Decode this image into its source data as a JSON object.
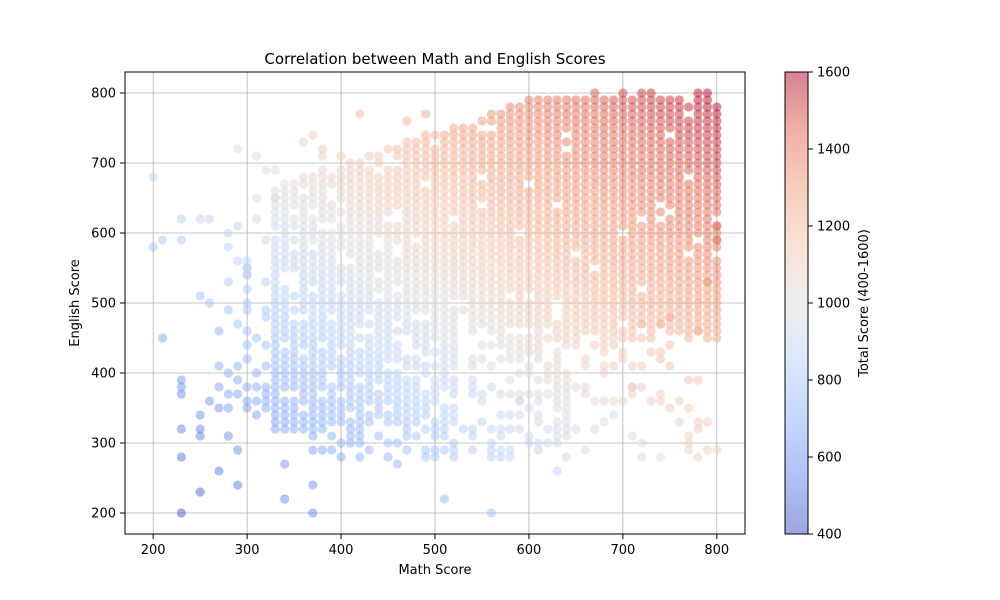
{
  "chart_data": {
    "type": "scatter",
    "title": "Correlation between Math and English Scores",
    "xlabel": "Math Score",
    "ylabel": "English Score",
    "xlim": [
      170,
      830
    ],
    "ylim": [
      170,
      830
    ],
    "xticks": [
      200,
      300,
      400,
      500,
      600,
      700,
      800
    ],
    "yticks": [
      200,
      300,
      400,
      500,
      600,
      700,
      800
    ],
    "grid": true,
    "colormap": "coolwarm",
    "point_alpha": 0.5,
    "colorbar": {
      "label": "Total Score (400-1600)",
      "range": [
        400,
        1600
      ],
      "ticks": [
        400,
        600,
        800,
        1000,
        1200,
        1400,
        1600
      ]
    },
    "density_note": "Dense grid of points with 10-point steps; core region roughly math 300-800, english 300-790, strongest concentration where math+english is high.",
    "points": [
      {
        "math": 200,
        "english": 680
      },
      {
        "math": 200,
        "english": 580
      },
      {
        "math": 210,
        "english": 590
      },
      {
        "math": 210,
        "english": 450
      },
      {
        "math": 230,
        "english": 620
      },
      {
        "math": 230,
        "english": 590
      },
      {
        "math": 230,
        "english": 390
      },
      {
        "math": 230,
        "english": 380
      },
      {
        "math": 230,
        "english": 370
      },
      {
        "math": 230,
        "english": 320
      },
      {
        "math": 230,
        "english": 280
      },
      {
        "math": 230,
        "english": 200
      },
      {
        "math": 250,
        "english": 620
      },
      {
        "math": 250,
        "english": 510
      },
      {
        "math": 250,
        "english": 340
      },
      {
        "math": 250,
        "english": 320
      },
      {
        "math": 250,
        "english": 310
      },
      {
        "math": 250,
        "english": 230
      },
      {
        "math": 260,
        "english": 620
      },
      {
        "math": 260,
        "english": 500
      },
      {
        "math": 260,
        "english": 360
      },
      {
        "math": 270,
        "english": 460
      },
      {
        "math": 270,
        "english": 410
      },
      {
        "math": 270,
        "english": 380
      },
      {
        "math": 270,
        "english": 350
      },
      {
        "math": 270,
        "english": 260
      },
      {
        "math": 280,
        "english": 600
      },
      {
        "math": 280,
        "english": 580
      },
      {
        "math": 280,
        "english": 530
      },
      {
        "math": 280,
        "english": 490
      },
      {
        "math": 280,
        "english": 400
      },
      {
        "math": 280,
        "english": 370
      },
      {
        "math": 280,
        "english": 350
      },
      {
        "math": 280,
        "english": 310
      },
      {
        "math": 290,
        "english": 720
      },
      {
        "math": 290,
        "english": 610
      },
      {
        "math": 290,
        "english": 290
      },
      {
        "math": 290,
        "english": 240
      },
      {
        "math": 300,
        "english": 550
      },
      {
        "math": 300,
        "english": 540
      },
      {
        "math": 310,
        "english": 710
      },
      {
        "math": 310,
        "english": 620
      },
      {
        "math": 320,
        "english": 690
      },
      {
        "math": 330,
        "english": 690
      },
      {
        "math": 330,
        "english": 650
      },
      {
        "math": 340,
        "english": 270
      },
      {
        "math": 340,
        "english": 220
      },
      {
        "math": 360,
        "english": 730
      },
      {
        "math": 370,
        "english": 740
      },
      {
        "math": 370,
        "english": 240
      },
      {
        "math": 370,
        "english": 200
      },
      {
        "math": 380,
        "english": 720
      },
      {
        "math": 380,
        "english": 710
      },
      {
        "math": 400,
        "english": 710
      },
      {
        "math": 420,
        "english": 770
      },
      {
        "math": 420,
        "english": 300
      },
      {
        "math": 460,
        "english": 270
      },
      {
        "math": 470,
        "english": 760
      },
      {
        "math": 490,
        "english": 770
      },
      {
        "math": 510,
        "english": 220
      },
      {
        "math": 560,
        "english": 200
      },
      {
        "math": 580,
        "english": 320
      },
      {
        "math": 590,
        "english": 360
      },
      {
        "math": 610,
        "english": 340
      },
      {
        "math": 630,
        "english": 260
      },
      {
        "math": 640,
        "english": 310
      },
      {
        "math": 650,
        "english": 380
      },
      {
        "math": 680,
        "english": 430
      },
      {
        "math": 690,
        "english": 410
      },
      {
        "math": 700,
        "english": 430
      },
      {
        "math": 700,
        "english": 360
      },
      {
        "math": 710,
        "english": 380
      },
      {
        "math": 720,
        "english": 470
      },
      {
        "math": 740,
        "english": 470
      },
      {
        "math": 750,
        "english": 480
      },
      {
        "math": 780,
        "english": 460
      },
      {
        "math": 790,
        "english": 450
      },
      {
        "math": 790,
        "english": 530
      },
      {
        "math": 800,
        "english": 590
      },
      {
        "math": 800,
        "english": 610
      },
      {
        "math": 700,
        "english": 800
      },
      {
        "math": 720,
        "english": 800
      },
      {
        "math": 730,
        "english": 800
      },
      {
        "math": 780,
        "english": 800
      },
      {
        "math": 790,
        "english": 800
      },
      {
        "math": 670,
        "english": 800
      }
    ]
  }
}
